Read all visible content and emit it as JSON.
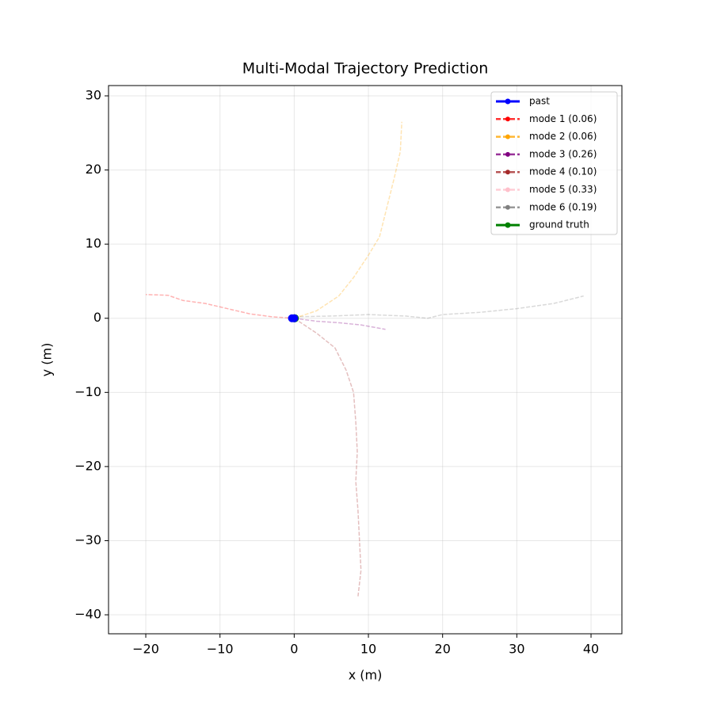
{
  "chart_data": {
    "type": "line",
    "title": "Multi-Modal Trajectory Prediction",
    "xlabel": "x (m)",
    "ylabel": "y (m)",
    "xlim": [
      -25.02,
      44.16
    ],
    "ylim": [
      -42.56,
      31.39
    ],
    "xticks": [
      {
        "value": -20,
        "label": "−20"
      },
      {
        "value": -10,
        "label": "−10"
      },
      0,
      10,
      20,
      30,
      40
    ],
    "yticks": [
      {
        "value": -40,
        "label": "−40"
      },
      {
        "value": -30,
        "label": "−30"
      },
      {
        "value": -20,
        "label": "−20"
      },
      {
        "value": -10,
        "label": "−10"
      },
      0,
      10,
      20,
      30
    ],
    "grid": true,
    "legend": "upper right",
    "series": [
      {
        "name": "past",
        "color": "#0000ff",
        "alpha": 1,
        "dash": false,
        "x": [
          -0.3,
          0
        ],
        "values": [
          0,
          0
        ]
      },
      {
        "name": "mode 1 (0.06)",
        "color": "#ff0000",
        "alpha": 0.3,
        "dash": true,
        "x": [
          0,
          -3,
          -6,
          -9,
          -12,
          -15,
          -17,
          -20
        ],
        "values": [
          0,
          0.2,
          0.6,
          1.3,
          2,
          2.4,
          3.1,
          3.2
        ]
      },
      {
        "name": "mode 2 (0.06)",
        "color": "#ffa500",
        "alpha": 0.3,
        "dash": true,
        "x": [
          0,
          3,
          6,
          8,
          10,
          11.5,
          12.5,
          13.5,
          14.3,
          14.5
        ],
        "values": [
          0,
          1,
          3,
          5.5,
          8.5,
          11,
          15,
          19,
          22.5,
          26.5
        ]
      },
      {
        "name": "mode 3 (0.26)",
        "color": "#800080",
        "alpha": 0.3,
        "dash": true,
        "x": [
          0,
          3,
          6,
          9,
          12.3
        ],
        "values": [
          0,
          -0.4,
          -0.6,
          -0.9,
          -1.5
        ]
      },
      {
        "name": "mode 4 (0.10)",
        "color": "#a52a2a",
        "alpha": 0.3,
        "dash": true,
        "x": [
          0,
          3,
          5.5,
          7,
          8,
          8.3,
          8.5,
          8.3,
          8.6,
          8.8,
          9,
          8.6
        ],
        "values": [
          0,
          -2,
          -4,
          -7,
          -10,
          -14,
          -18,
          -22,
          -26,
          -30,
          -34,
          -37.5
        ]
      },
      {
        "name": "mode 5 (0.33)",
        "color": "#ffc0cb",
        "alpha": 0.5,
        "dash": true,
        "x": [
          0,
          0.8
        ],
        "values": [
          0,
          0.3
        ]
      },
      {
        "name": "mode 6 (0.19)",
        "color": "#808080",
        "alpha": 0.3,
        "dash": true,
        "x": [
          0,
          5,
          10,
          15,
          18,
          20,
          25,
          30,
          35,
          39
        ],
        "values": [
          0.2,
          0.3,
          0.5,
          0.3,
          0,
          0.5,
          0.8,
          1.3,
          2,
          3
        ]
      },
      {
        "name": "ground truth",
        "color": "#008000",
        "alpha": 1,
        "dash": false,
        "x": [
          0,
          0.1
        ],
        "values": [
          0,
          0
        ]
      }
    ]
  }
}
